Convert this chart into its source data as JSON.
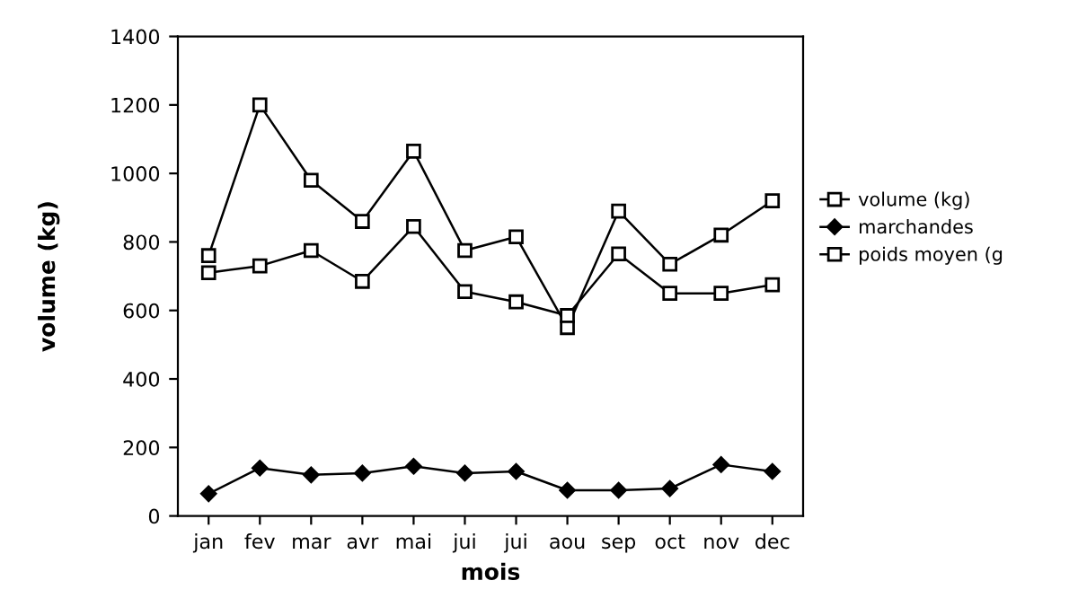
{
  "chart_data": {
    "type": "line",
    "xlabel": "mois",
    "ylabel": "volume (kg)",
    "categories": [
      "jan",
      "fev",
      "mar",
      "avr",
      "mai",
      "jui",
      "jui",
      "aou",
      "sep",
      "oct",
      "nov",
      "dec"
    ],
    "series": [
      {
        "name": "volume (kg)",
        "color": "#000000",
        "marker": "square",
        "values": [
          760,
          1200,
          980,
          860,
          1065,
          775,
          815,
          550,
          890,
          735,
          820,
          920
        ]
      },
      {
        "name": "marchandes",
        "color": "#000000",
        "marker": "diamond",
        "values": [
          65,
          140,
          120,
          125,
          145,
          125,
          130,
          75,
          75,
          80,
          150,
          130
        ]
      },
      {
        "name": "poids moyen (g",
        "color": "#000000",
        "marker": "square",
        "values": [
          710,
          730,
          775,
          685,
          845,
          655,
          625,
          585,
          765,
          650,
          650,
          675
        ]
      }
    ],
    "ylim": [
      0,
      1400
    ],
    "yticks": [
      0,
      200,
      400,
      600,
      800,
      1000,
      1200,
      1400
    ],
    "grid": false,
    "legend": "right",
    "line_style": "solid"
  }
}
